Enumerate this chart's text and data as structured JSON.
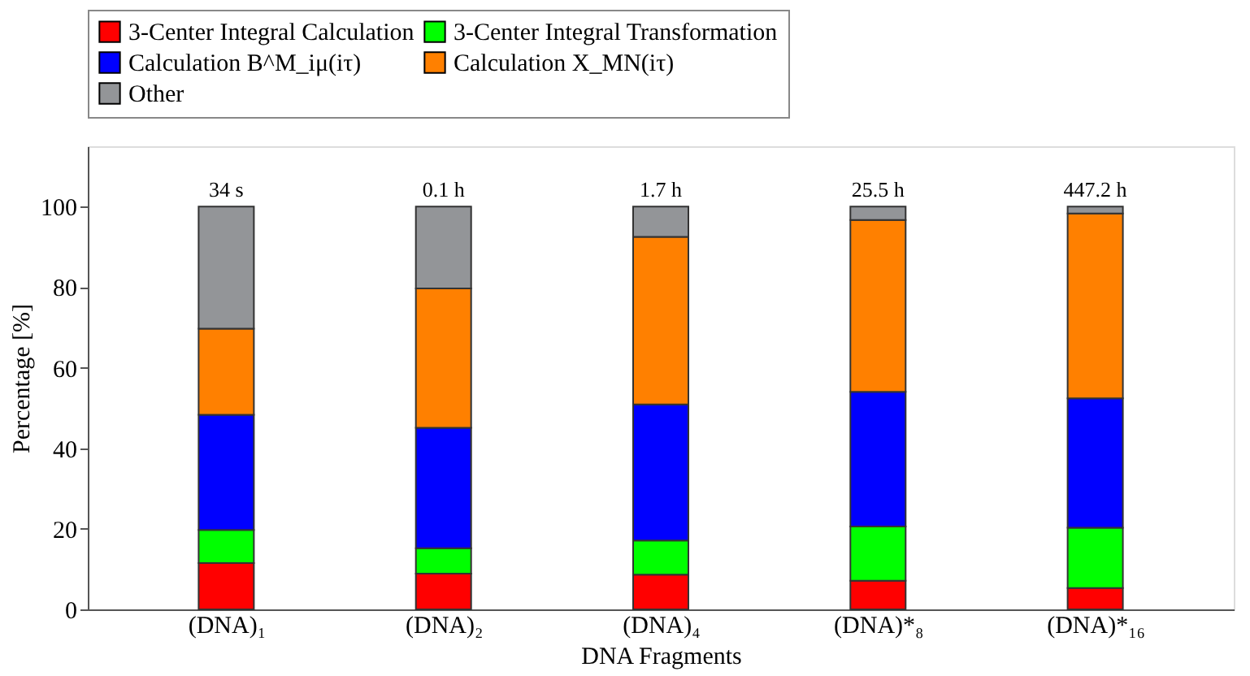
{
  "chart_data": {
    "type": "bar",
    "stacked": true,
    "xlabel": "DNA Fragments",
    "ylabel": "Percentage [%]",
    "categories": [
      "(DNA)₁",
      "(DNA)₂",
      "(DNA)₄",
      "(DNA)*₈",
      "(DNA)*₁₆"
    ],
    "series": [
      {
        "name": "3-Center Integral Calculation",
        "color": "#ff0000",
        "values": [
          11.5,
          8.9,
          8.6,
          7.1,
          5.3
        ]
      },
      {
        "name": "3-Center Integral Transformation",
        "color": "#00ff00",
        "values": [
          8.2,
          6.3,
          8.5,
          13.5,
          15.0
        ]
      },
      {
        "name": "Calculation B^M_iμ(iτ)",
        "color": "#0000ff",
        "values": [
          28.6,
          29.9,
          33.8,
          33.4,
          32.1
        ]
      },
      {
        "name": "Calculation X_MN(iτ)",
        "color": "#ff8000",
        "values": [
          21.4,
          34.6,
          41.6,
          42.7,
          45.9
        ]
      },
      {
        "name": "Other",
        "color": "#939598",
        "values": [
          30.3,
          20.3,
          7.5,
          3.3,
          1.7
        ]
      }
    ],
    "annotations": [
      "34 s",
      "0.1 h",
      "1.7 h",
      "25.5 h",
      "447.2 h"
    ],
    "ylim": [
      0,
      115
    ],
    "yticks": [
      0,
      20,
      40,
      60,
      80,
      100
    ],
    "grid": false,
    "legend": "top"
  }
}
